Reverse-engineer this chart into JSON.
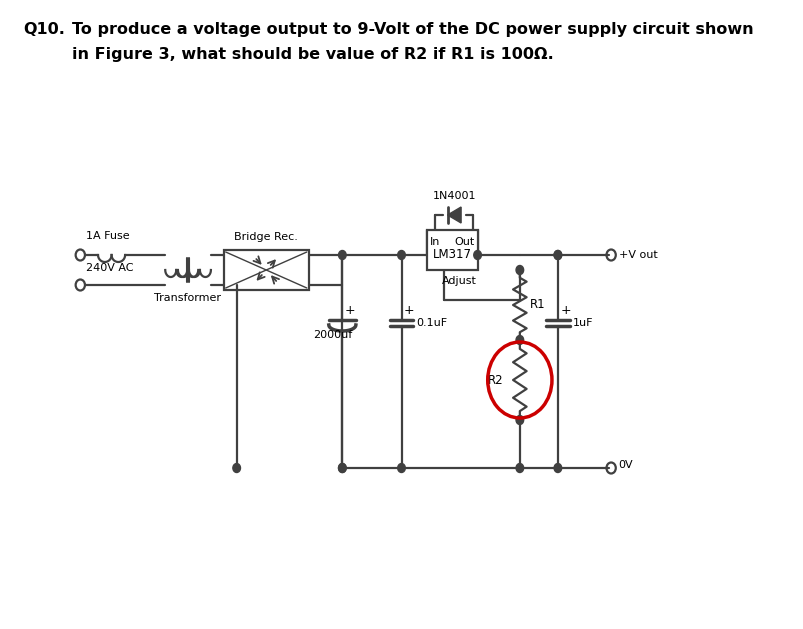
{
  "title_q": "Q10.",
  "title_text1": "To produce a voltage output to 9-Volt of the DC power supply circuit shown",
  "title_text2": "in Figure 3, what should be value of R2 if R1 is 100Ω.",
  "bg_color": "#ffffff",
  "text_color": "#000000",
  "circuit_color": "#404040",
  "highlight_color": "#cc0000",
  "label_1A_Fuse": "1A Fuse",
  "label_Bridge": "Bridge Rec.",
  "label_1N4001": "1N4001",
  "label_240VAC": "240V AC",
  "label_Transformer": "Transformer",
  "label_In": "In",
  "label_Out": "Out",
  "label_LM317": "LM317",
  "label_Adjust": "Adjust",
  "label_R1": "R1",
  "label_R2": "R2",
  "label_2000uf": "2000uf",
  "label_01uF": "0.1uF",
  "label_1uF": "1uF",
  "label_Vout": "+V out",
  "label_0V": "0V",
  "title_fontsize": 11.5
}
